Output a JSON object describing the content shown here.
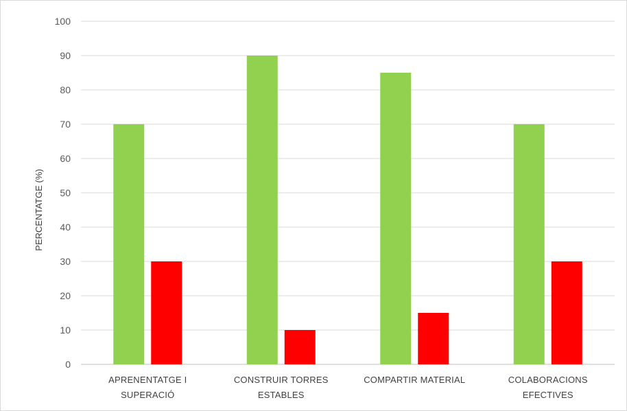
{
  "chart_data": {
    "type": "bar",
    "categories": [
      [
        "APRENENTATGE I",
        "SUPERACIÓ"
      ],
      [
        "CONSTRUIR TORRES",
        "ESTABLES"
      ],
      [
        "COMPARTIR MATERIAL"
      ],
      [
        "COLABORACIONS",
        "EFECTIVES"
      ]
    ],
    "series": [
      {
        "values": [
          70,
          90,
          85,
          70
        ],
        "color": "#92d050"
      },
      {
        "values": [
          30,
          10,
          15,
          30
        ],
        "color": "#ff0000"
      }
    ],
    "title": "",
    "xlabel": "",
    "ylabel": "PERCENTATGE (%)",
    "ylim": [
      0,
      100
    ],
    "yticks": [
      0,
      10,
      20,
      30,
      40,
      50,
      60,
      70,
      80,
      90,
      100
    ],
    "grid": true,
    "legend": "none"
  }
}
